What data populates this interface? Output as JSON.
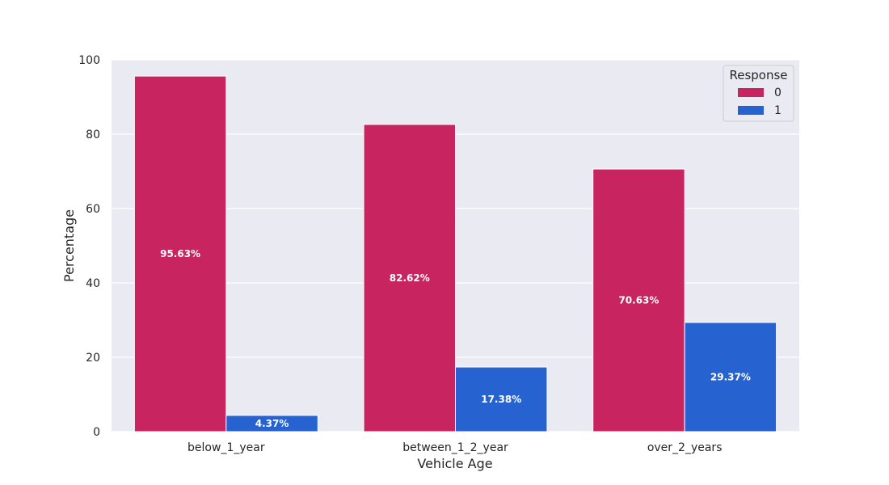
{
  "chart_data": {
    "type": "bar",
    "title": "",
    "xlabel": "Vehicle Age",
    "ylabel": "Percentage",
    "categories": [
      "below_1_year",
      "between_1_2_year",
      "over_2_years"
    ],
    "series": [
      {
        "name": "0",
        "values": [
          95.63,
          82.62,
          70.63
        ],
        "labels": [
          "95.63%",
          "82.62%",
          "70.63%"
        ],
        "color": "#c8245f"
      },
      {
        "name": "1",
        "values": [
          4.37,
          17.38,
          29.37
        ],
        "labels": [
          "4.37%",
          "17.38%",
          "29.37%"
        ],
        "color": "#2662d0"
      }
    ],
    "ylim": [
      0,
      100
    ],
    "yticks": [
      0,
      20,
      40,
      60,
      80,
      100
    ],
    "grid": true,
    "legend": {
      "title": "Response",
      "position": "top-right"
    },
    "plot_background": "#eaeaf2"
  }
}
